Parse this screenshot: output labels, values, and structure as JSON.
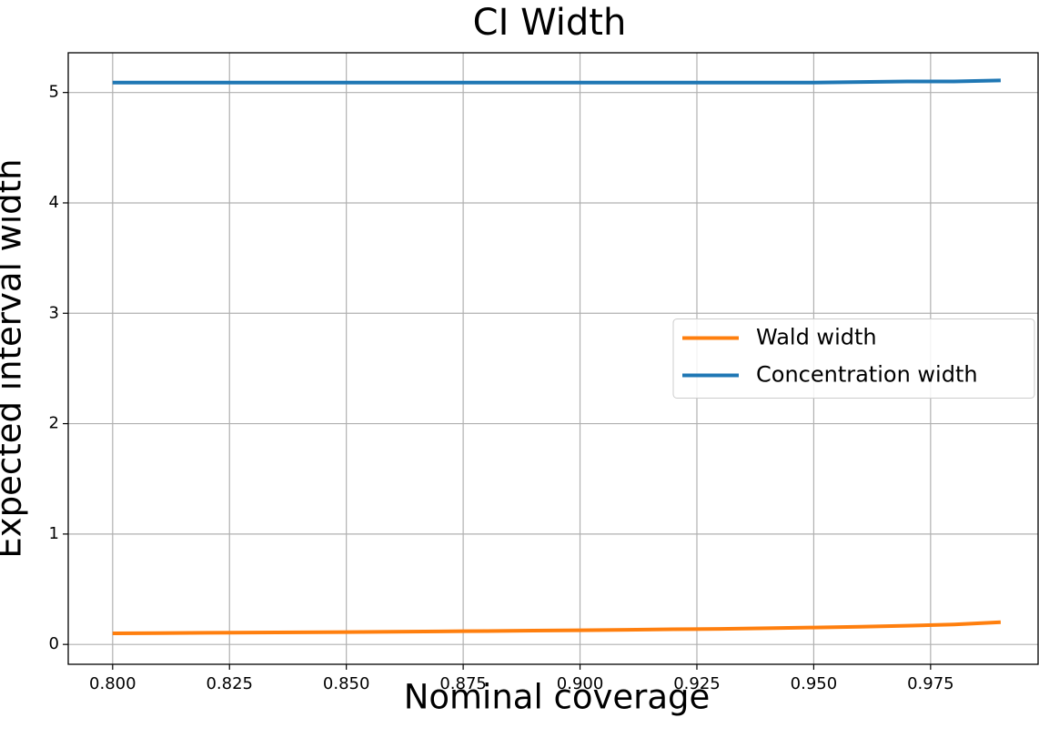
{
  "chart_data": {
    "type": "line",
    "title": "CI Width",
    "x_label": "Nominal coverage",
    "y_label": "Expected interval width",
    "x": [
      0.8,
      0.81,
      0.82,
      0.83,
      0.84,
      0.85,
      0.86,
      0.87,
      0.88,
      0.89,
      0.9,
      0.91,
      0.92,
      0.93,
      0.94,
      0.95,
      0.96,
      0.97,
      0.98,
      0.99
    ],
    "series": [
      {
        "name": "Wald width",
        "color": "#ff7f0e",
        "values": [
          0.1,
          0.102,
          0.105,
          0.107,
          0.11,
          0.112,
          0.115,
          0.118,
          0.121,
          0.125,
          0.128,
          0.132,
          0.137,
          0.141,
          0.147,
          0.153,
          0.16,
          0.169,
          0.181,
          0.201
        ]
      },
      {
        "name": "Concentration width",
        "color": "#1f77b4",
        "values": [
          5.09,
          5.09,
          5.09,
          5.09,
          5.09,
          5.09,
          5.09,
          5.09,
          5.09,
          5.09,
          5.09,
          5.09,
          5.09,
          5.09,
          5.09,
          5.09,
          5.095,
          5.1,
          5.1,
          5.11
        ]
      }
    ],
    "xlim": [
      0.7905,
      0.998
    ],
    "ylim": [
      -0.18,
      5.36
    ],
    "xticks": [
      {
        "value": 0.8,
        "label": "0.800"
      },
      {
        "value": 0.825,
        "label": "0.825"
      },
      {
        "value": 0.85,
        "label": "0.850"
      },
      {
        "value": 0.875,
        "label": "0.875"
      },
      {
        "value": 0.9,
        "label": "0.900"
      },
      {
        "value": 0.925,
        "label": "0.925"
      },
      {
        "value": 0.95,
        "label": "0.950"
      },
      {
        "value": 0.975,
        "label": "0.975"
      }
    ],
    "yticks": [
      0,
      1,
      2,
      3,
      4,
      5
    ],
    "grid": true,
    "legend": "center right"
  }
}
